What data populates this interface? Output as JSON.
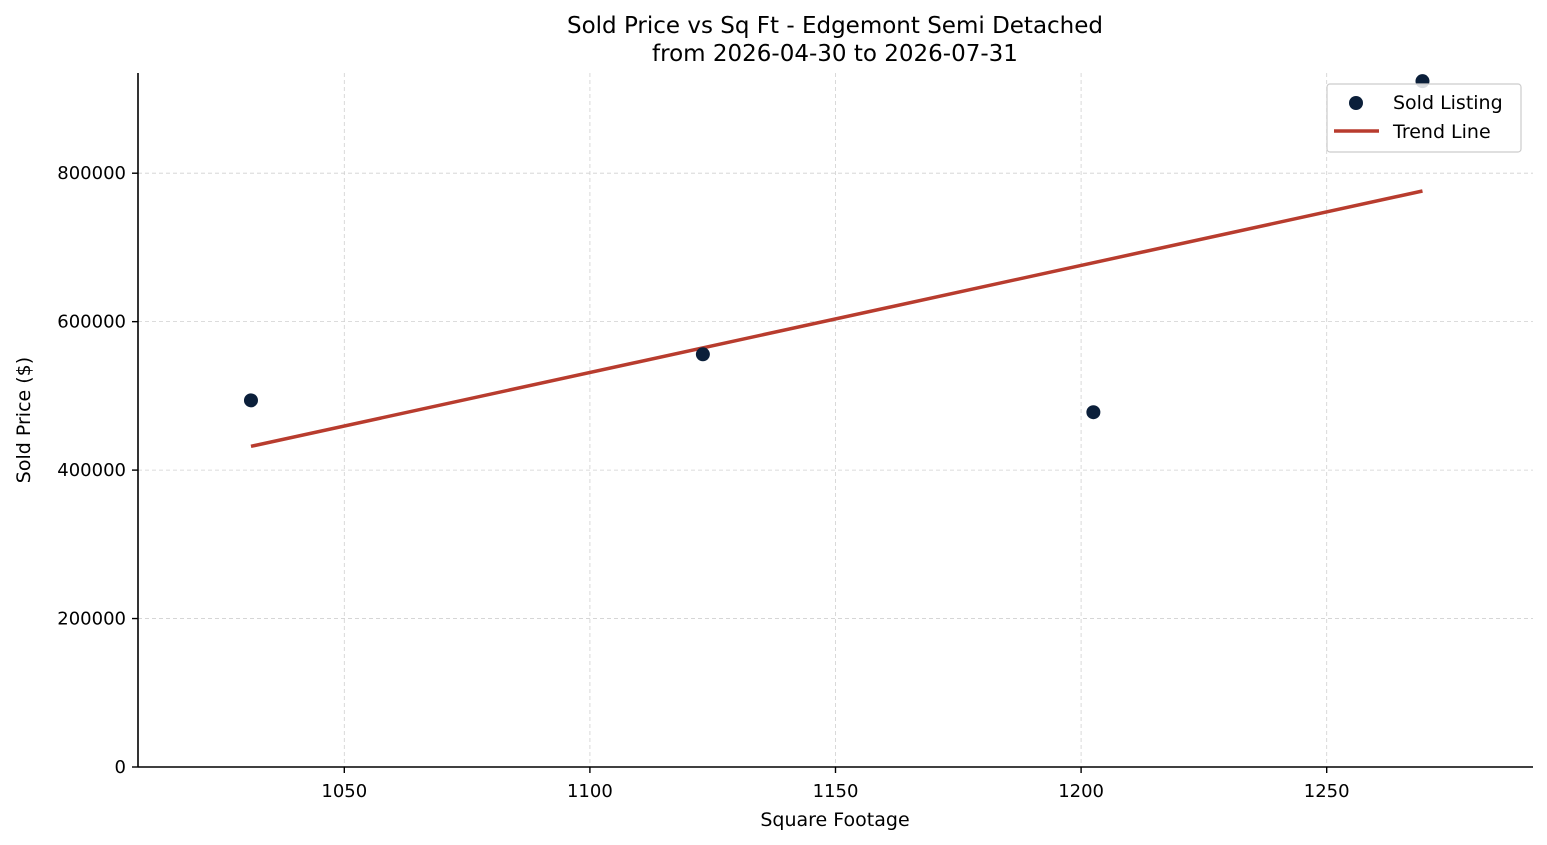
{
  "chart_data": {
    "type": "scatter",
    "title": "Sold Price vs Sq Ft - Edgemont Semi Detached",
    "subtitle": "from 2026-04-30 to 2026-07-31",
    "xlabel": "Square Footage",
    "ylabel": "Sold Price ($)",
    "xlim": [
      1008,
      1292
    ],
    "ylim": [
      0,
      935000
    ],
    "xticks": [
      1050,
      1100,
      1150,
      1200,
      1250
    ],
    "yticks": [
      0,
      200000,
      400000,
      600000,
      800000
    ],
    "grid": true,
    "legend_position": "top-right",
    "series": [
      {
        "name": "Sold Listing",
        "kind": "scatter",
        "color": "#0b1f3a",
        "points": [
          {
            "x": 1031,
            "y": 494000
          },
          {
            "x": 1123,
            "y": 556000
          },
          {
            "x": 1202.5,
            "y": 478000
          },
          {
            "x": 1269.5,
            "y": 924000
          }
        ]
      },
      {
        "name": "Trend Line",
        "kind": "line",
        "color": "#b83c2e",
        "points": [
          {
            "x": 1031,
            "y": 432000
          },
          {
            "x": 1269.5,
            "y": 776000
          }
        ]
      }
    ]
  }
}
